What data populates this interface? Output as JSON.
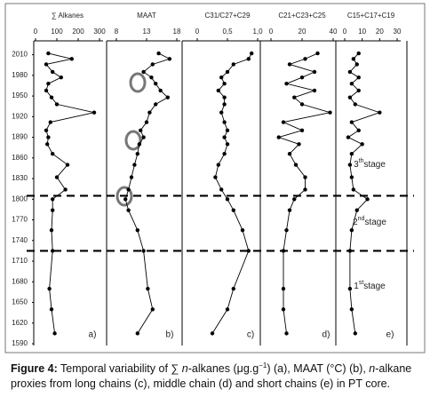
{
  "chart_data": [
    {
      "type": "profile",
      "title": "∑ Alkanes",
      "letter": "a)",
      "x": [
        2012,
        2004,
        1996,
        1985,
        1977,
        1968,
        1958,
        1948,
        1938,
        1926,
        1912,
        1900,
        1890,
        1880,
        1866,
        1850,
        1832,
        1814,
        1800,
        1784,
        1755,
        1725,
        1670,
        1640,
        1605
      ],
      "values": [
        60,
        170,
        50,
        80,
        120,
        60,
        50,
        75,
        100,
        275,
        70,
        50,
        60,
        55,
        80,
        150,
        100,
        140,
        80,
        80,
        75,
        80,
        65,
        75,
        90
      ],
      "xlim": [
        0,
        300
      ],
      "xticks": [
        0,
        100,
        200,
        300
      ],
      "ylim": [
        1590,
        2025
      ],
      "yticks": [
        2010,
        1980,
        1950,
        1920,
        1890,
        1860,
        1830,
        1800,
        1770,
        1740,
        1710,
        1680,
        1650,
        1620,
        1590
      ],
      "color": "#000000"
    },
    {
      "type": "profile",
      "title": "MAAT",
      "letter": "b)",
      "x": [
        2012,
        2004,
        1996,
        1985,
        1977,
        1968,
        1958,
        1948,
        1938,
        1926,
        1912,
        1900,
        1890,
        1880,
        1866,
        1850,
        1832,
        1814,
        1800,
        1784,
        1755,
        1725,
        1670,
        1640,
        1605
      ],
      "values": [
        15,
        16.8,
        14,
        12.5,
        13.8,
        14.5,
        15.3,
        16.5,
        14.5,
        13.5,
        13,
        12,
        12.5,
        11.8,
        11.5,
        11,
        10.5,
        10,
        9.5,
        10,
        11.5,
        12.5,
        13.2,
        14,
        11.5
      ],
      "xlim": [
        8,
        18
      ],
      "xticks": [
        8,
        13,
        18
      ],
      "ylim": [
        1590,
        2025
      ],
      "color": "#000000"
    },
    {
      "type": "profile",
      "title": "C31/C27+C29",
      "letter": "c)",
      "x": [
        2012,
        2004,
        1996,
        1985,
        1977,
        1968,
        1958,
        1948,
        1938,
        1926,
        1912,
        1900,
        1890,
        1880,
        1866,
        1850,
        1832,
        1814,
        1800,
        1784,
        1755,
        1725,
        1670,
        1640,
        1605
      ],
      "values": [
        0.9,
        0.85,
        0.6,
        0.5,
        0.4,
        0.45,
        0.35,
        0.45,
        0.45,
        0.4,
        0.45,
        0.5,
        0.45,
        0.5,
        0.45,
        0.35,
        0.3,
        0.4,
        0.5,
        0.6,
        0.75,
        0.85,
        0.6,
        0.5,
        0.25
      ],
      "xlim": [
        0,
        1
      ],
      "xticks": [
        0,
        {
          "value": 0.5,
          "label": "0,5"
        },
        {
          "value": 1,
          "label": "1,0"
        }
      ],
      "ylim": [
        1590,
        2025
      ],
      "color": "#000000"
    },
    {
      "type": "profile",
      "title": "C21+C23+C25",
      "letter": "d)",
      "x": [
        2012,
        2004,
        1996,
        1985,
        1977,
        1968,
        1958,
        1948,
        1938,
        1926,
        1912,
        1900,
        1890,
        1880,
        1866,
        1850,
        1832,
        1814,
        1800,
        1784,
        1755,
        1725,
        1670,
        1640,
        1605
      ],
      "values": [
        30,
        22,
        12,
        28,
        20,
        10,
        28,
        15,
        20,
        38,
        8,
        20,
        5,
        18,
        12,
        16,
        22,
        22,
        15,
        12,
        10,
        8,
        8,
        8,
        10
      ],
      "xlim": [
        0,
        40
      ],
      "xticks": [
        0,
        20,
        40
      ],
      "ylim": [
        1590,
        2025
      ],
      "color": "#000000"
    },
    {
      "type": "profile",
      "title": "C15+C17+C19",
      "letter": "e)",
      "x": [
        2012,
        2004,
        1996,
        1985,
        1977,
        1968,
        1958,
        1948,
        1938,
        1926,
        1912,
        1900,
        1890,
        1880,
        1866,
        1850,
        1832,
        1814,
        1800,
        1784,
        1755,
        1725,
        1670,
        1640,
        1605
      ],
      "values": [
        8,
        5,
        7,
        3,
        8,
        4,
        8,
        3,
        6,
        20,
        4,
        8,
        2,
        10,
        4,
        3,
        4,
        5,
        13,
        7,
        4,
        3,
        3,
        4,
        6
      ],
      "xlim": [
        0,
        30
      ],
      "xticks": [
        0,
        10,
        20,
        30
      ],
      "ylim": [
        1590,
        2025
      ],
      "color": "#000000"
    }
  ],
  "boundaries": [
    1805,
    1725
  ],
  "stages": [
    {
      "number": "3",
      "suffix": "th",
      "label": "stage"
    },
    {
      "number": "2",
      "suffix": "nd",
      "label": "stage"
    },
    {
      "number": "1",
      "suffix": "st",
      "label": "stage"
    }
  ],
  "caption": {
    "label": "Figure 4:",
    "segments": [
      "Temporal variability of ∑ ",
      "n",
      "-alkanes (μg.g",
      "−1",
      ") (a), MAAT (°C) (b), ",
      "n",
      "-alkane proxies from long chains (c), middle chain (d) and short chains (e) in PT core."
    ]
  }
}
